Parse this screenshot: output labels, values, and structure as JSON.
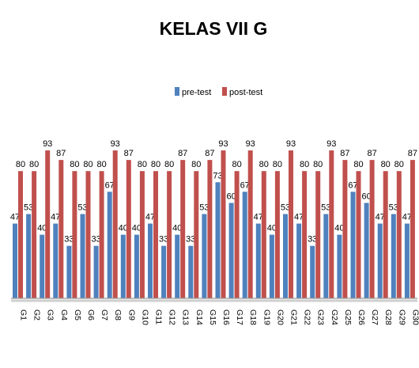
{
  "chart_data": {
    "type": "bar",
    "title": "KELAS VII G",
    "xlabel": "",
    "ylabel": "",
    "ylim": [
      0,
      100
    ],
    "grid": false,
    "legend_position": "top",
    "categories": [
      "G1",
      "G2",
      "G3",
      "G4",
      "G5",
      "G6",
      "G7",
      "G8",
      "G9",
      "G10",
      "G11",
      "G12",
      "G13",
      "G14",
      "G15",
      "G16",
      "G17",
      "G18",
      "G19",
      "G20",
      "G21",
      "G22",
      "G23",
      "G24",
      "G25",
      "G26",
      "G27",
      "G28",
      "G29",
      "G30"
    ],
    "series": [
      {
        "name": "pre-test",
        "color": "#4F81BD",
        "values": [
          47,
          53,
          40,
          47,
          33,
          53,
          33,
          67,
          40,
          40,
          47,
          33,
          40,
          33,
          53,
          73,
          60,
          67,
          47,
          40,
          53,
          47,
          33,
          53,
          40,
          67,
          60,
          47,
          53,
          47
        ]
      },
      {
        "name": "post-test",
        "color": "#C0504D",
        "values": [
          80,
          80,
          93,
          87,
          80,
          80,
          80,
          93,
          87,
          80,
          80,
          80,
          87,
          80,
          87,
          93,
          80,
          93,
          80,
          80,
          93,
          80,
          80,
          93,
          87,
          80,
          87,
          80,
          80,
          87
        ]
      }
    ]
  }
}
